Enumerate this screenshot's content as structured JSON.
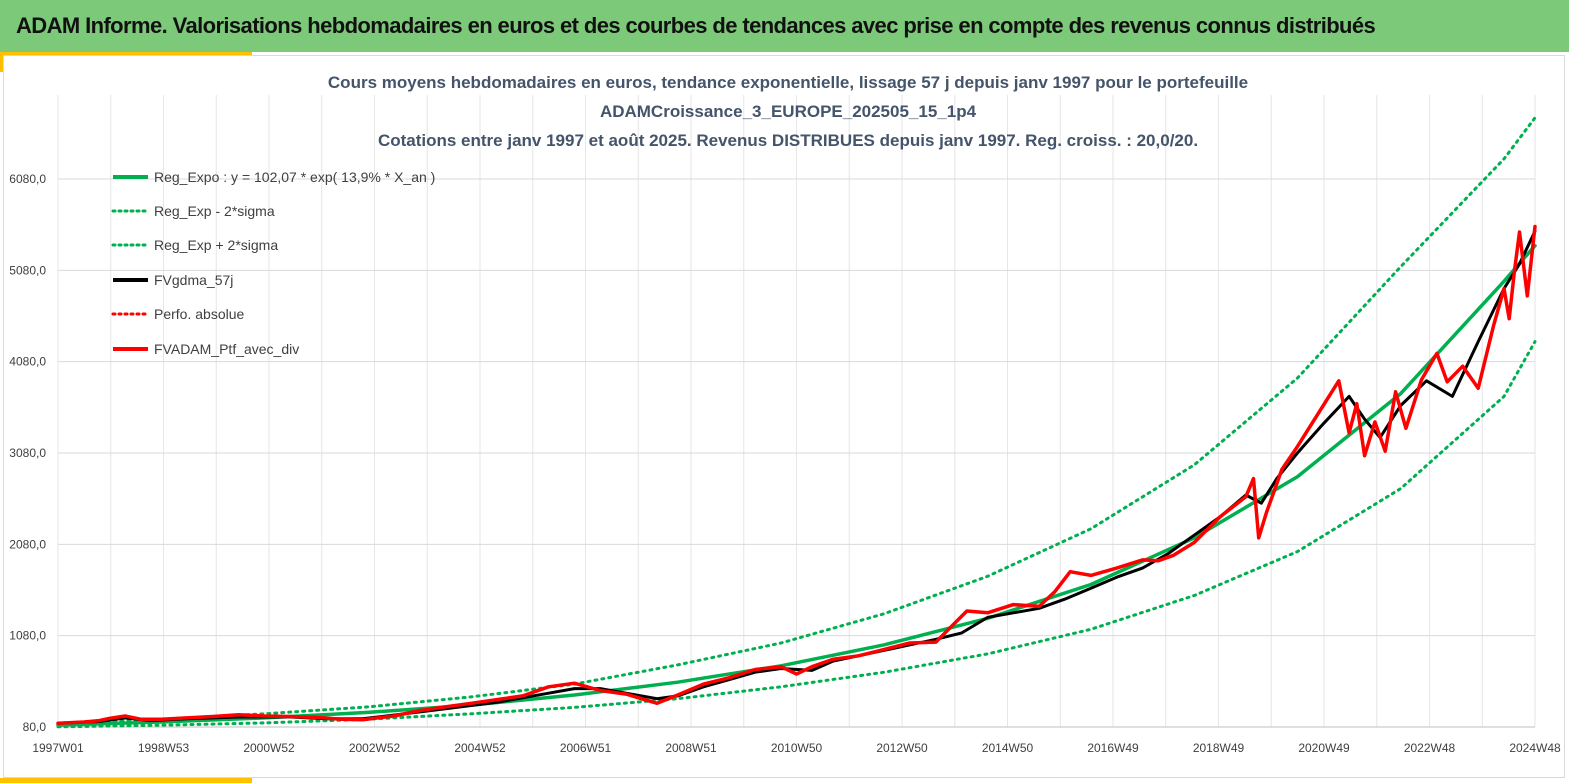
{
  "banner": {
    "title": "ADAM Informe. Valorisations hebdomadaires en euros et des courbes de tendances avec prise en compte des revenus connus distribués"
  },
  "colors": {
    "banner_bg": "#7dc97a",
    "accent": "#ffc000",
    "reg_expo": "#00b050",
    "fvgdma": "#000000",
    "portfolio": "#ff0000",
    "title_text": "#44546a"
  },
  "chart_data": {
    "type": "line",
    "title_lines": [
      "Cours moyens hebdomadaires  en euros, tendance exponentielle, lissage 57 j depuis janv 1997 pour le portefeuille",
      "ADAMCroissance_3_EUROPE_202505_15_1p4",
      "Cotations  entre janv 1997 et août  2025. Revenus DISTRIBUES depuis janv 1997. Reg. croiss. : 20,0/20."
    ],
    "xlabel": "",
    "ylabel": "",
    "x_ticks": [
      "1997W01",
      "1998W53",
      "2000W52",
      "2002W52",
      "2004W52",
      "2006W51",
      "2008W51",
      "2010W50",
      "2012W50",
      "2014W50",
      "2016W49",
      "2018W49",
      "2020W49",
      "2022W48",
      "2024W48"
    ],
    "y_ticks": [
      "80,0",
      "1080,0",
      "2080,0",
      "3080,0",
      "4080,0",
      "5080,0",
      "6080,0"
    ],
    "x_range": [
      1997.0,
      2025.6
    ],
    "ylim": [
      80,
      6080
    ],
    "grid": "vertical and horizontal",
    "legend_position": "top-left",
    "legend": [
      {
        "label": "Reg_Expo : y = 102,07 * exp( 13,9% *  X_an )",
        "style": "solid",
        "color": "#00b050"
      },
      {
        "label": "Reg_Exp - 2*sigma",
        "style": "dotted",
        "color": "#00b050"
      },
      {
        "label": "Reg_Exp + 2*sigma",
        "style": "dotted",
        "color": "#00b050"
      },
      {
        "label": "FVgdma_57j",
        "style": "solid",
        "color": "#000000"
      },
      {
        "label": "Perfo. absolue",
        "style": "dotted",
        "color": "#ff0000"
      },
      {
        "label": "FVADAM_Ptf_avec_div",
        "style": "solid",
        "color": "#ff0000"
      }
    ],
    "series": [
      {
        "name": "Reg_Expo : y = 102,07 * exp( 13,9% *  X_an )",
        "x": [
          1997.0,
          1999.0,
          2001.0,
          2003.0,
          2005.0,
          2007.0,
          2009.0,
          2011.0,
          2013.0,
          2015.0,
          2017.0,
          2019.0,
          2021.0,
          2023.0,
          2025.0,
          2025.6
        ],
        "values": [
          102,
          135,
          180,
          240,
          320,
          430,
          570,
          750,
          980,
          1270,
          1640,
          2150,
          2820,
          3730,
          4960,
          5350
        ]
      },
      {
        "name": "Reg_Exp - 2*sigma",
        "x": [
          1997.0,
          1999.0,
          2001.0,
          2003.0,
          2005.0,
          2007.0,
          2009.0,
          2011.0,
          2013.0,
          2015.0,
          2017.0,
          2019.0,
          2021.0,
          2023.0,
          2025.0,
          2025.6
        ],
        "values": [
          82,
          100,
          125,
          165,
          225,
          295,
          390,
          520,
          680,
          880,
          1150,
          1520,
          2000,
          2690,
          3700,
          4300
        ]
      },
      {
        "name": "Reg_Exp + 2*sigma",
        "x": [
          1997.0,
          1999.0,
          2001.0,
          2003.0,
          2005.0,
          2007.0,
          2009.0,
          2011.0,
          2013.0,
          2015.0,
          2017.0,
          2019.0,
          2021.0,
          2023.0,
          2025.0,
          2025.6
        ],
        "values": [
          122,
          165,
          225,
          300,
          410,
          550,
          760,
          1000,
          1320,
          1730,
          2250,
          2950,
          3900,
          5120,
          6300,
          6750
        ]
      },
      {
        "name": "FVgdma_57j",
        "x": [
          1997.0,
          1997.8,
          1998.3,
          1998.8,
          1999.5,
          2000.5,
          2001.5,
          2002.2,
          2002.9,
          2003.5,
          2004.5,
          2005.5,
          2006.5,
          2007.0,
          2007.5,
          2008.0,
          2008.6,
          2009.0,
          2009.5,
          2010.0,
          2010.5,
          2011.0,
          2011.6,
          2012.0,
          2012.5,
          2013.0,
          2013.5,
          2014.0,
          2014.5,
          2015.0,
          2015.5,
          2016.0,
          2016.5,
          2017.0,
          2017.5,
          2018.0,
          2018.5,
          2019.0,
          2019.5,
          2020.0,
          2020.3,
          2020.6,
          2021.0,
          2021.5,
          2022.0,
          2022.3,
          2022.6,
          2023.0,
          2023.5,
          2024.0,
          2024.5,
          2025.0,
          2025.3,
          2025.6
        ],
        "values": [
          120,
          140,
          180,
          150,
          170,
          190,
          190,
          170,
          170,
          210,
          280,
          350,
          450,
          500,
          500,
          450,
          390,
          420,
          520,
          600,
          680,
          720,
          700,
          800,
          860,
          920,
          980,
          1040,
          1110,
          1280,
          1330,
          1380,
          1480,
          1600,
          1720,
          1820,
          1980,
          2180,
          2380,
          2620,
          2530,
          2800,
          3080,
          3400,
          3700,
          3450,
          3250,
          3600,
          3870,
          3700,
          4300,
          4880,
          5150,
          5510
        ]
      },
      {
        "name": "FVADAM_Ptf_avec_div",
        "x": [
          1997.0,
          1997.5,
          1997.8,
          1998.0,
          1998.3,
          1998.6,
          1999.0,
          1999.5,
          2000.0,
          2000.5,
          2001.0,
          2001.5,
          2002.0,
          2002.5,
          2002.9,
          2003.5,
          2004.0,
          2004.5,
          2005.0,
          2005.5,
          2006.0,
          2006.5,
          2007.0,
          2007.5,
          2008.0,
          2008.6,
          2009.0,
          2009.5,
          2010.0,
          2010.5,
          2011.0,
          2011.3,
          2011.6,
          2012.0,
          2012.5,
          2013.0,
          2013.5,
          2014.0,
          2014.3,
          2014.6,
          2015.0,
          2015.5,
          2016.0,
          2016.3,
          2016.6,
          2017.0,
          2017.5,
          2018.0,
          2018.3,
          2018.6,
          2019.0,
          2019.5,
          2020.0,
          2020.15,
          2020.25,
          2020.4,
          2020.7,
          2021.0,
          2021.4,
          2021.8,
          2022.0,
          2022.15,
          2022.3,
          2022.5,
          2022.7,
          2022.9,
          2023.1,
          2023.4,
          2023.7,
          2023.9,
          2024.2,
          2024.5,
          2024.8,
          2025.0,
          2025.1,
          2025.2,
          2025.3,
          2025.45,
          2025.6
        ],
        "values": [
          120,
          135,
          150,
          175,
          200,
          165,
          165,
          180,
          195,
          215,
          200,
          195,
          185,
          165,
          160,
          200,
          260,
          300,
          340,
          380,
          420,
          520,
          560,
          480,
          440,
          340,
          430,
          550,
          620,
          710,
          740,
          660,
          740,
          820,
          860,
          930,
          1000,
          1010,
          1180,
          1350,
          1330,
          1420,
          1400,
          1560,
          1780,
          1740,
          1820,
          1910,
          1900,
          1960,
          2100,
          2380,
          2600,
          2800,
          2150,
          2430,
          2900,
          3150,
          3510,
          3870,
          3300,
          3620,
          3050,
          3420,
          3100,
          3750,
          3350,
          3880,
          4170,
          3860,
          4030,
          3790,
          4480,
          4880,
          4550,
          5060,
          5500,
          4800,
          5560
        ]
      }
    ]
  }
}
